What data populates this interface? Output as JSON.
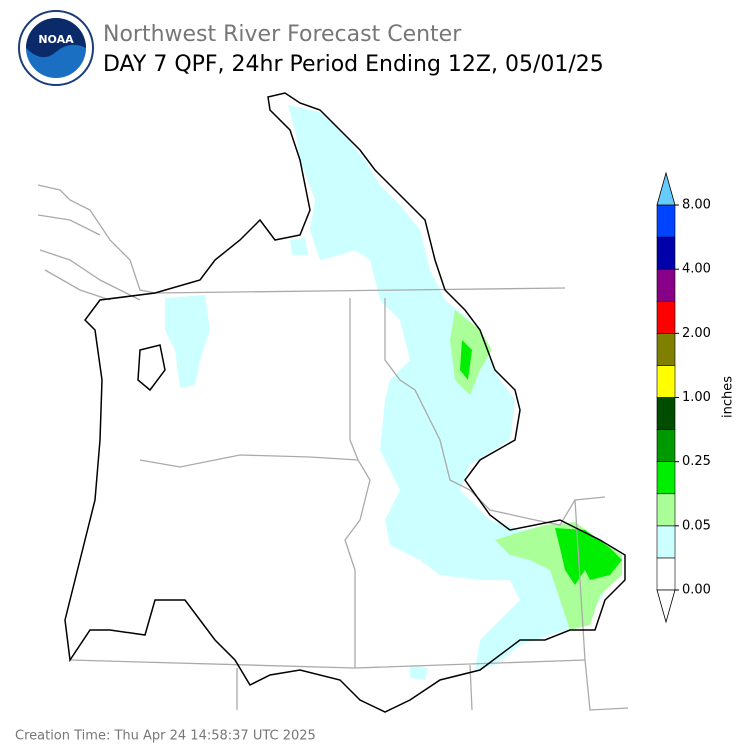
{
  "header": {
    "logo_text": "NOAA",
    "title": "Northwest River Forecast Center",
    "subtitle": "DAY 7 QPF, 24hr Period Ending 12Z, 05/01/25"
  },
  "colorbar": {
    "label": "inches",
    "colors": [
      "#ffffff",
      "#ccffff",
      "#aaff99",
      "#00ee00",
      "#009900",
      "#004d00",
      "#ffff00",
      "#808000",
      "#ff0000",
      "#880088",
      "#0000aa",
      "#0044ff"
    ],
    "under_color": "#ffffff",
    "over_color": "#66ccff",
    "tick_labels": [
      "0.00",
      "0.05",
      "0.25",
      "1.00",
      "2.00",
      "4.00",
      "8.00"
    ]
  },
  "footer": {
    "creation_time": "Creation Time: Thu Apr 24 14:58:37 UTC 2025"
  }
}
